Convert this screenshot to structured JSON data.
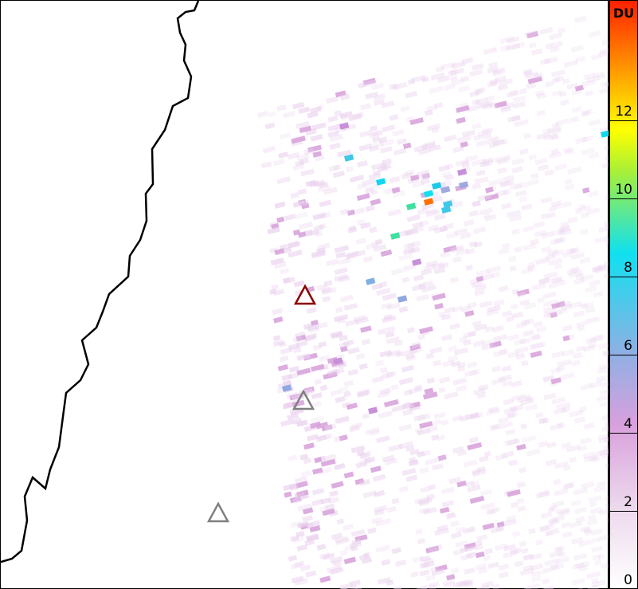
{
  "colorbar": {
    "unit": "DU",
    "ticks": [
      "0",
      "2",
      "4",
      "6",
      "8",
      "10",
      "12"
    ],
    "range": [
      0,
      15
    ],
    "colors": [
      "#ffffff",
      "#ecd8ec",
      "#d8a0dc",
      "#8fb0e4",
      "#10e0f0",
      "#a8f038",
      "#ffff00",
      "#ffb000",
      "#ff2000"
    ]
  },
  "markers": [
    {
      "name": "volcano-active",
      "color": "#8b0000"
    },
    {
      "name": "volcano",
      "color": "#808080"
    },
    {
      "name": "volcano",
      "color": "#808080"
    }
  ],
  "coastline_color": "#000000"
}
